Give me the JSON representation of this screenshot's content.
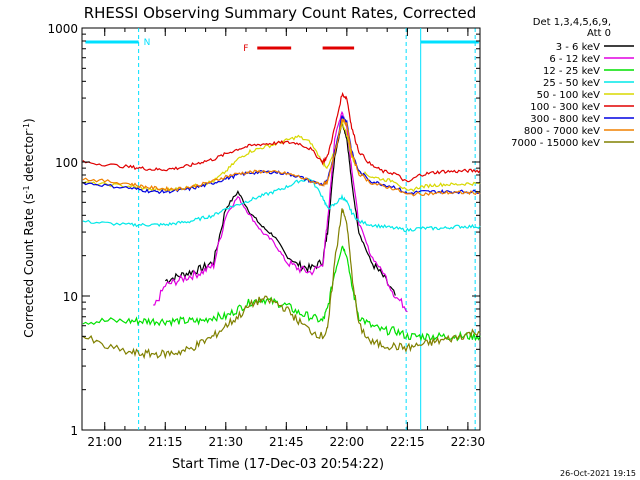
{
  "chart_data": {
    "type": "line",
    "title": "RHESSI Observing Summary Count Rates, Corrected",
    "xlabel": "Start Time (17-Dec-03 20:54:22)",
    "ylabel": "Corrected Count Rate (s-1 detector-1)",
    "ylabel_parts": {
      "a": "Corrected Count Rate (s",
      "b": "-1",
      "c": " detector",
      "d": "-1",
      "e": ")"
    },
    "yscale": "log",
    "ylim": [
      1,
      1000
    ],
    "xlim": [
      20.9061,
      22.55
    ],
    "x_ticks": [
      {
        "v": 21.0,
        "label": "21:00"
      },
      {
        "v": 21.25,
        "label": "21:15"
      },
      {
        "v": 21.5,
        "label": "21:30"
      },
      {
        "v": 21.75,
        "label": "21:45"
      },
      {
        "v": 22.0,
        "label": "22:00"
      },
      {
        "v": 22.25,
        "label": "22:15"
      },
      {
        "v": 22.5,
        "label": "22:30"
      }
    ],
    "y_ticks": [
      {
        "v": 1,
        "label": "1"
      },
      {
        "v": 10,
        "label": "10"
      },
      {
        "v": 100,
        "label": "100"
      },
      {
        "v": 1000,
        "label": "1000"
      }
    ],
    "legend_header": [
      "Det 1,3,4,5,6,9,",
      "Att 0"
    ],
    "timestamp": "26-Oct-2021 19:15",
    "annotations": {
      "night_marker": "N",
      "flare_marker": "F",
      "night_color": "#00e0ff",
      "flare_color": "#e00000",
      "night_intervals": [
        [
          20.92,
          21.14
        ],
        [
          22.305,
          22.545
        ]
      ],
      "flare_intervals": [
        [
          21.63,
          21.77
        ],
        [
          21.9,
          22.03
        ]
      ],
      "vlines": [
        21.14,
        22.245,
        22.305,
        22.53
      ]
    },
    "x": [
      20.91,
      21.0,
      21.1,
      21.15,
      21.2,
      21.25,
      21.3,
      21.35,
      21.4,
      21.45,
      21.5,
      21.55,
      21.6,
      21.65,
      21.7,
      21.75,
      21.8,
      21.85,
      21.9,
      21.92,
      21.95,
      21.98,
      22.0,
      22.02,
      22.05,
      22.1,
      22.15,
      22.2,
      22.25,
      22.3,
      22.35,
      22.4,
      22.45,
      22.5,
      22.55
    ],
    "series": [
      {
        "name": "3 - 6 keV",
        "color": "#000000",
        "values": [
          null,
          null,
          null,
          null,
          null,
          13,
          14,
          15,
          16,
          18,
          45,
          60,
          42,
          33,
          28,
          20,
          17,
          16,
          18,
          30,
          110,
          200,
          150,
          70,
          30,
          18,
          14,
          10,
          null,
          null,
          null,
          null,
          null,
          null,
          null
        ]
      },
      {
        "name": "6 - 12 keV",
        "color": "#e000e0",
        "values": [
          null,
          null,
          null,
          null,
          8,
          12,
          13,
          14,
          15,
          17,
          40,
          55,
          40,
          30,
          25,
          18,
          16,
          15,
          17,
          35,
          150,
          240,
          180,
          90,
          35,
          20,
          15,
          10,
          8,
          null,
          null,
          null,
          null,
          null,
          null
        ]
      },
      {
        "name": "12 - 25 keV",
        "color": "#00e000",
        "values": [
          6.5,
          6.5,
          6.5,
          6.5,
          6.5,
          6.5,
          6.5,
          6.5,
          6.5,
          7,
          7,
          8,
          9,
          9.5,
          9,
          8.5,
          7.5,
          7,
          6.5,
          8,
          15,
          24,
          20,
          12,
          7,
          6,
          5.5,
          5.5,
          5,
          5,
          5,
          5,
          5,
          5,
          5
        ]
      },
      {
        "name": "25 - 50 keV",
        "color": "#00e8e8",
        "values": [
          36,
          35,
          34,
          34,
          34,
          34,
          35,
          36,
          38,
          40,
          45,
          48,
          52,
          56,
          60,
          65,
          72,
          75,
          55,
          45,
          48,
          55,
          50,
          42,
          36,
          34,
          33,
          32,
          31,
          32,
          32,
          32,
          33,
          33,
          33
        ]
      },
      {
        "name": "50 - 100 keV",
        "color": "#d8d800",
        "values": [
          70,
          68,
          66,
          64,
          62,
          62,
          63,
          65,
          68,
          72,
          85,
          105,
          120,
          128,
          135,
          145,
          155,
          140,
          100,
          90,
          120,
          200,
          160,
          110,
          85,
          78,
          74,
          72,
          60,
          65,
          67,
          68,
          68,
          69,
          69
        ]
      },
      {
        "name": "100 - 300 keV",
        "color": "#e00000",
        "values": [
          100,
          96,
          92,
          90,
          88,
          88,
          90,
          94,
          100,
          105,
          115,
          125,
          132,
          136,
          138,
          140,
          138,
          125,
          100,
          110,
          180,
          320,
          300,
          180,
          120,
          95,
          85,
          82,
          70,
          80,
          83,
          85,
          85,
          86,
          86
        ]
      },
      {
        "name": "300 - 800 keV",
        "color": "#0000e0",
        "values": [
          70,
          67,
          64,
          62,
          60,
          60,
          61,
          63,
          66,
          70,
          75,
          80,
          83,
          84,
          84,
          82,
          78,
          72,
          68,
          72,
          120,
          220,
          200,
          120,
          85,
          72,
          68,
          65,
          58,
          60,
          60,
          60,
          60,
          60,
          60
        ]
      },
      {
        "name": "800 - 7000 keV",
        "color": "#f08000",
        "values": [
          75,
          72,
          69,
          66,
          64,
          63,
          63,
          65,
          68,
          72,
          78,
          82,
          84,
          85,
          84,
          82,
          78,
          72,
          68,
          70,
          115,
          210,
          190,
          115,
          82,
          70,
          66,
          63,
          57,
          58,
          58,
          59,
          59,
          59,
          59
        ]
      },
      {
        "name": "7000 - 15000 keV",
        "color": "#808000",
        "values": [
          5,
          4.2,
          3.8,
          3.7,
          3.7,
          3.7,
          3.8,
          4,
          4.5,
          5,
          6,
          7,
          8.5,
          9.5,
          9,
          8,
          6.5,
          5.5,
          5,
          5.5,
          18,
          45,
          35,
          15,
          6,
          4.5,
          4.3,
          4.2,
          4.1,
          4.3,
          4.5,
          4.7,
          4.9,
          5.2,
          5.5
        ]
      }
    ]
  }
}
